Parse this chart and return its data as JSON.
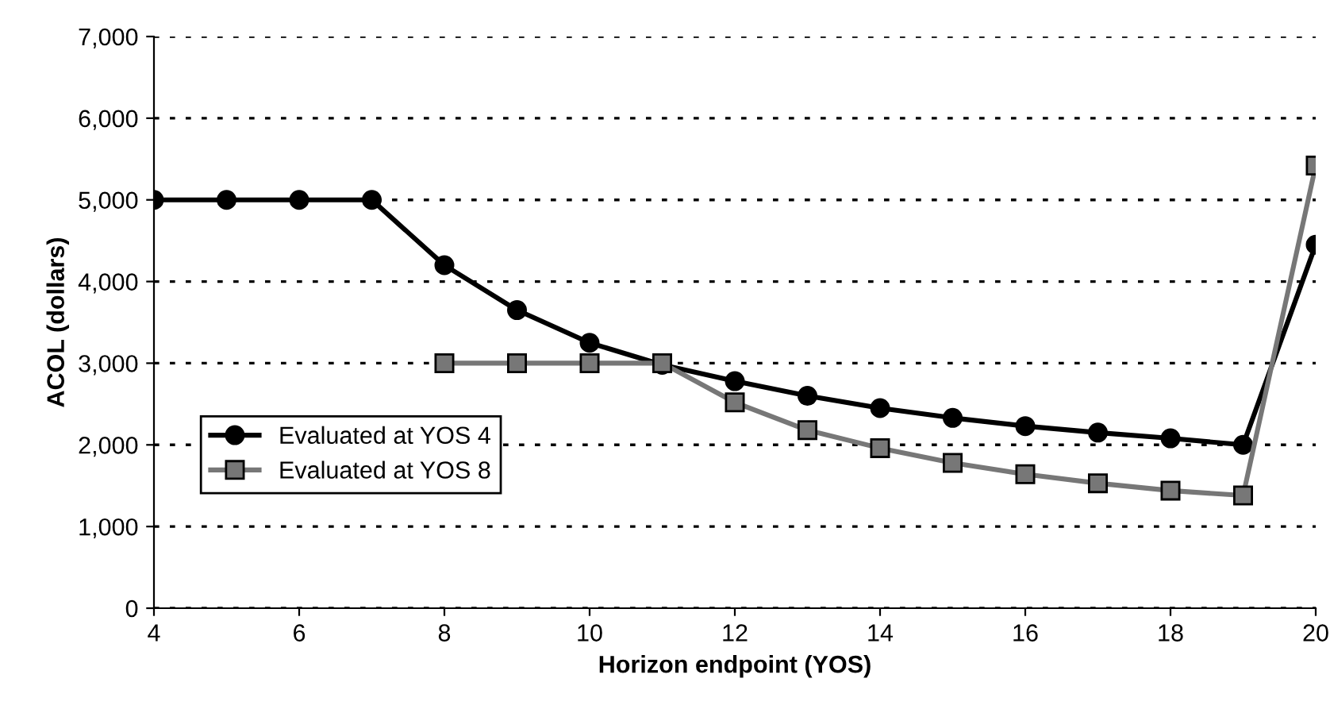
{
  "chart_data": {
    "type": "line",
    "xlabel": "Horizon endpoint (YOS)",
    "ylabel": "ACOL (dollars)",
    "series": [
      {
        "name": "Evaluated at YOS 4",
        "color": "#000000",
        "marker": "circle",
        "x": [
          4,
          5,
          6,
          7,
          8,
          9,
          10,
          11,
          12,
          13,
          14,
          15,
          16,
          17,
          18,
          19,
          20
        ],
        "values": [
          5000,
          5000,
          5000,
          5000,
          4200,
          3650,
          3250,
          2980,
          2780,
          2600,
          2450,
          2330,
          2230,
          2150,
          2080,
          2000,
          4450
        ]
      },
      {
        "name": "Evaluated at YOS 8",
        "color": "#777777",
        "marker": "square",
        "x": [
          8,
          9,
          10,
          11,
          12,
          13,
          14,
          15,
          16,
          17,
          18,
          19,
          20
        ],
        "values": [
          3000,
          3000,
          3000,
          3000,
          2520,
          2180,
          1960,
          1780,
          1640,
          1530,
          1440,
          1380,
          5420
        ]
      }
    ],
    "xlim": [
      4,
      20
    ],
    "xticks": [
      4,
      6,
      8,
      10,
      12,
      14,
      16,
      18,
      20
    ],
    "ylim": [
      0,
      7000
    ],
    "yticks": [
      {
        "value": 0,
        "label": "0"
      },
      {
        "value": 1000,
        "label": "1,000"
      },
      {
        "value": 2000,
        "label": "2,000"
      },
      {
        "value": 3000,
        "label": "3,000"
      },
      {
        "value": 4000,
        "label": "4,000"
      },
      {
        "value": 5000,
        "label": "5,000"
      },
      {
        "value": 6000,
        "label": "6,000"
      },
      {
        "value": 7000,
        "label": "7,000"
      }
    ],
    "grid": "y",
    "legend": "bottom left"
  }
}
